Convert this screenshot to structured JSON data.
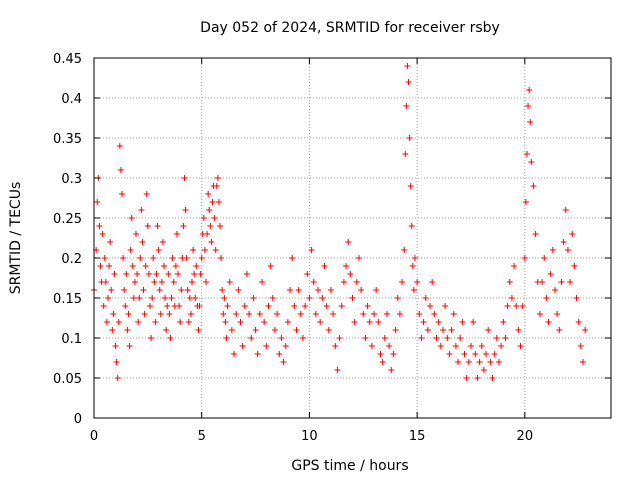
{
  "chart_data": {
    "type": "scatter",
    "title": "Day 052 of 2024, SRMTID for receiver rsby",
    "xlabel": "GPS time / hours",
    "ylabel": "SRMTID / TECUs",
    "xlim": [
      0,
      24
    ],
    "ylim": [
      0,
      0.45
    ],
    "xticks": [
      0,
      5,
      10,
      15,
      20
    ],
    "xtick_labels": [
      "0",
      "5",
      "10",
      "15",
      "20"
    ],
    "yticks": [
      0,
      0.05,
      0.1,
      0.15,
      0.2,
      0.25,
      0.3,
      0.35,
      0.4,
      0.45
    ],
    "ytick_labels": [
      "0",
      "0.05",
      "0.1",
      "0.15",
      "0.2",
      "0.25",
      "0.3",
      "0.35",
      "0.4",
      "0.45"
    ],
    "grid": true,
    "marker": "+",
    "color": "#ff0000",
    "series": [
      {
        "name": "SRMTID",
        "points": [
          [
            0.0,
            0.16
          ],
          [
            0.1,
            0.21
          ],
          [
            0.15,
            0.27
          ],
          [
            0.2,
            0.3
          ],
          [
            0.25,
            0.24
          ],
          [
            0.3,
            0.19
          ],
          [
            0.35,
            0.17
          ],
          [
            0.4,
            0.23
          ],
          [
            0.45,
            0.14
          ],
          [
            0.5,
            0.2
          ],
          [
            0.55,
            0.17
          ],
          [
            0.6,
            0.12
          ],
          [
            0.65,
            0.15
          ],
          [
            0.7,
            0.19
          ],
          [
            0.75,
            0.22
          ],
          [
            0.8,
            0.16
          ],
          [
            0.85,
            0.11
          ],
          [
            0.9,
            0.13
          ],
          [
            0.95,
            0.18
          ],
          [
            1.0,
            0.09
          ],
          [
            1.05,
            0.07
          ],
          [
            1.1,
            0.05
          ],
          [
            1.15,
            0.12
          ],
          [
            1.2,
            0.34
          ],
          [
            1.25,
            0.31
          ],
          [
            1.3,
            0.28
          ],
          [
            1.35,
            0.2
          ],
          [
            1.4,
            0.16
          ],
          [
            1.45,
            0.14
          ],
          [
            1.5,
            0.18
          ],
          [
            1.55,
            0.11
          ],
          [
            1.6,
            0.13
          ],
          [
            1.65,
            0.09
          ],
          [
            1.7,
            0.21
          ],
          [
            1.75,
            0.25
          ],
          [
            1.8,
            0.19
          ],
          [
            1.85,
            0.15
          ],
          [
            1.9,
            0.17
          ],
          [
            1.95,
            0.23
          ],
          [
            2.0,
            0.18
          ],
          [
            2.05,
            0.12
          ],
          [
            2.1,
            0.15
          ],
          [
            2.15,
            0.2
          ],
          [
            2.2,
            0.26
          ],
          [
            2.25,
            0.22
          ],
          [
            2.3,
            0.16
          ],
          [
            2.35,
            0.13
          ],
          [
            2.4,
            0.19
          ],
          [
            2.45,
            0.28
          ],
          [
            2.5,
            0.24
          ],
          [
            2.55,
            0.18
          ],
          [
            2.6,
            0.14
          ],
          [
            2.65,
            0.1
          ],
          [
            2.7,
            0.15
          ],
          [
            2.75,
            0.2
          ],
          [
            2.8,
            0.17
          ],
          [
            2.85,
            0.12
          ],
          [
            2.9,
            0.18
          ],
          [
            2.95,
            0.24
          ],
          [
            3.0,
            0.21
          ],
          [
            3.05,
            0.16
          ],
          [
            3.1,
            0.13
          ],
          [
            3.15,
            0.17
          ],
          [
            3.2,
            0.22
          ],
          [
            3.25,
            0.19
          ],
          [
            3.3,
            0.15
          ],
          [
            3.35,
            0.11
          ],
          [
            3.4,
            0.14
          ],
          [
            3.45,
            0.18
          ],
          [
            3.5,
            0.13
          ],
          [
            3.55,
            0.1
          ],
          [
            3.6,
            0.15
          ],
          [
            3.65,
            0.2
          ],
          [
            3.7,
            0.17
          ],
          [
            3.75,
            0.14
          ],
          [
            3.8,
            0.19
          ],
          [
            3.85,
            0.23
          ],
          [
            3.9,
            0.18
          ],
          [
            3.95,
            0.14
          ],
          [
            4.0,
            0.12
          ],
          [
            4.05,
            0.16
          ],
          [
            4.1,
            0.2
          ],
          [
            4.15,
            0.24
          ],
          [
            4.2,
            0.3
          ],
          [
            4.25,
            0.26
          ],
          [
            4.3,
            0.2
          ],
          [
            4.35,
            0.16
          ],
          [
            4.4,
            0.12
          ],
          [
            4.45,
            0.15
          ],
          [
            4.5,
            0.13
          ],
          [
            4.55,
            0.17
          ],
          [
            4.6,
            0.21
          ],
          [
            4.65,
            0.18
          ],
          [
            4.7,
            0.15
          ],
          [
            4.75,
            0.19
          ],
          [
            4.8,
            0.14
          ],
          [
            4.85,
            0.11
          ],
          [
            4.9,
            0.14
          ],
          [
            4.95,
            0.18
          ],
          [
            5.0,
            0.2
          ],
          [
            5.05,
            0.23
          ],
          [
            5.1,
            0.25
          ],
          [
            5.15,
            0.21
          ],
          [
            5.2,
            0.17
          ],
          [
            5.25,
            0.23
          ],
          [
            5.3,
            0.28
          ],
          [
            5.35,
            0.26
          ],
          [
            5.4,
            0.24
          ],
          [
            5.45,
            0.22
          ],
          [
            5.5,
            0.27
          ],
          [
            5.55,
            0.29
          ],
          [
            5.6,
            0.25
          ],
          [
            5.65,
            0.21
          ],
          [
            5.7,
            0.29
          ],
          [
            5.75,
            0.3
          ],
          [
            5.8,
            0.27
          ],
          [
            5.85,
            0.24
          ],
          [
            5.9,
            0.2
          ],
          [
            5.95,
            0.16
          ],
          [
            6.0,
            0.13
          ],
          [
            6.05,
            0.15
          ],
          [
            6.1,
            0.12
          ],
          [
            6.15,
            0.1
          ],
          [
            6.2,
            0.14
          ],
          [
            6.3,
            0.17
          ],
          [
            6.4,
            0.11
          ],
          [
            6.5,
            0.08
          ],
          [
            6.6,
            0.13
          ],
          [
            6.7,
            0.16
          ],
          [
            6.8,
            0.12
          ],
          [
            6.9,
            0.09
          ],
          [
            7.0,
            0.14
          ],
          [
            7.1,
            0.18
          ],
          [
            7.2,
            0.13
          ],
          [
            7.3,
            0.1
          ],
          [
            7.4,
            0.15
          ],
          [
            7.5,
            0.11
          ],
          [
            7.6,
            0.08
          ],
          [
            7.7,
            0.13
          ],
          [
            7.8,
            0.17
          ],
          [
            7.9,
            0.12
          ],
          [
            8.0,
            0.09
          ],
          [
            8.1,
            0.14
          ],
          [
            8.2,
            0.19
          ],
          [
            8.3,
            0.15
          ],
          [
            8.4,
            0.11
          ],
          [
            8.5,
            0.13
          ],
          [
            8.6,
            0.08
          ],
          [
            8.7,
            0.1
          ],
          [
            8.8,
            0.07
          ],
          [
            8.9,
            0.09
          ],
          [
            9.0,
            0.12
          ],
          [
            9.1,
            0.16
          ],
          [
            9.2,
            0.2
          ],
          [
            9.3,
            0.14
          ],
          [
            9.4,
            0.11
          ],
          [
            9.5,
            0.16
          ],
          [
            9.6,
            0.13
          ],
          [
            9.7,
            0.1
          ],
          [
            9.8,
            0.14
          ],
          [
            9.9,
            0.18
          ],
          [
            10.0,
            0.15
          ],
          [
            10.1,
            0.21
          ],
          [
            10.2,
            0.17
          ],
          [
            10.3,
            0.13
          ],
          [
            10.4,
            0.16
          ],
          [
            10.5,
            0.12
          ],
          [
            10.6,
            0.15
          ],
          [
            10.7,
            0.19
          ],
          [
            10.8,
            0.14
          ],
          [
            10.9,
            0.11
          ],
          [
            11.0,
            0.16
          ],
          [
            11.1,
            0.13
          ],
          [
            11.2,
            0.09
          ],
          [
            11.3,
            0.06
          ],
          [
            11.4,
            0.1
          ],
          [
            11.5,
            0.14
          ],
          [
            11.6,
            0.17
          ],
          [
            11.7,
            0.19
          ],
          [
            11.8,
            0.22
          ],
          [
            11.9,
            0.18
          ],
          [
            12.0,
            0.15
          ],
          [
            12.1,
            0.12
          ],
          [
            12.2,
            0.17
          ],
          [
            12.3,
            0.2
          ],
          [
            12.4,
            0.16
          ],
          [
            12.5,
            0.13
          ],
          [
            12.6,
            0.1
          ],
          [
            12.7,
            0.14
          ],
          [
            12.8,
            0.12
          ],
          [
            12.9,
            0.09
          ],
          [
            13.0,
            0.13
          ],
          [
            13.1,
            0.16
          ],
          [
            13.2,
            0.12
          ],
          [
            13.3,
            0.08
          ],
          [
            13.4,
            0.07
          ],
          [
            13.5,
            0.1
          ],
          [
            13.6,
            0.13
          ],
          [
            13.7,
            0.09
          ],
          [
            13.8,
            0.06
          ],
          [
            13.9,
            0.08
          ],
          [
            14.0,
            0.11
          ],
          [
            14.1,
            0.15
          ],
          [
            14.2,
            0.13
          ],
          [
            14.3,
            0.17
          ],
          [
            14.4,
            0.21
          ],
          [
            14.45,
            0.33
          ],
          [
            14.5,
            0.39
          ],
          [
            14.55,
            0.44
          ],
          [
            14.6,
            0.42
          ],
          [
            14.65,
            0.35
          ],
          [
            14.7,
            0.29
          ],
          [
            14.75,
            0.24
          ],
          [
            14.8,
            0.19
          ],
          [
            14.85,
            0.16
          ],
          [
            14.9,
            0.2
          ],
          [
            15.0,
            0.17
          ],
          [
            15.1,
            0.13
          ],
          [
            15.2,
            0.1
          ],
          [
            15.3,
            0.12
          ],
          [
            15.4,
            0.15
          ],
          [
            15.5,
            0.11
          ],
          [
            15.6,
            0.14
          ],
          [
            15.7,
            0.17
          ],
          [
            15.8,
            0.13
          ],
          [
            15.9,
            0.1
          ],
          [
            16.0,
            0.12
          ],
          [
            16.1,
            0.09
          ],
          [
            16.2,
            0.11
          ],
          [
            16.3,
            0.14
          ],
          [
            16.4,
            0.1
          ],
          [
            16.5,
            0.08
          ],
          [
            16.6,
            0.11
          ],
          [
            16.7,
            0.13
          ],
          [
            16.8,
            0.09
          ],
          [
            16.9,
            0.07
          ],
          [
            17.0,
            0.1
          ],
          [
            17.1,
            0.12
          ],
          [
            17.2,
            0.08
          ],
          [
            17.3,
            0.05
          ],
          [
            17.4,
            0.07
          ],
          [
            17.5,
            0.09
          ],
          [
            17.6,
            0.12
          ],
          [
            17.7,
            0.08
          ],
          [
            17.8,
            0.05
          ],
          [
            17.9,
            0.07
          ],
          [
            18.0,
            0.09
          ],
          [
            18.1,
            0.06
          ],
          [
            18.2,
            0.08
          ],
          [
            18.3,
            0.11
          ],
          [
            18.4,
            0.07
          ],
          [
            18.5,
            0.05
          ],
          [
            18.6,
            0.08
          ],
          [
            18.7,
            0.1
          ],
          [
            18.8,
            0.07
          ],
          [
            18.9,
            0.09
          ],
          [
            19.0,
            0.12
          ],
          [
            19.1,
            0.1
          ],
          [
            19.2,
            0.14
          ],
          [
            19.3,
            0.17
          ],
          [
            19.4,
            0.15
          ],
          [
            19.5,
            0.19
          ],
          [
            19.6,
            0.14
          ],
          [
            19.7,
            0.11
          ],
          [
            19.8,
            0.09
          ],
          [
            19.9,
            0.14
          ],
          [
            20.0,
            0.2
          ],
          [
            20.05,
            0.27
          ],
          [
            20.1,
            0.33
          ],
          [
            20.15,
            0.39
          ],
          [
            20.2,
            0.41
          ],
          [
            20.25,
            0.37
          ],
          [
            20.3,
            0.32
          ],
          [
            20.4,
            0.29
          ],
          [
            20.5,
            0.23
          ],
          [
            20.6,
            0.17
          ],
          [
            20.7,
            0.13
          ],
          [
            20.8,
            0.17
          ],
          [
            20.9,
            0.2
          ],
          [
            21.0,
            0.15
          ],
          [
            21.1,
            0.12
          ],
          [
            21.2,
            0.18
          ],
          [
            21.3,
            0.21
          ],
          [
            21.4,
            0.16
          ],
          [
            21.5,
            0.13
          ],
          [
            21.6,
            0.11
          ],
          [
            21.7,
            0.17
          ],
          [
            21.8,
            0.22
          ],
          [
            21.9,
            0.26
          ],
          [
            22.0,
            0.21
          ],
          [
            22.1,
            0.17
          ],
          [
            22.2,
            0.23
          ],
          [
            22.3,
            0.19
          ],
          [
            22.4,
            0.15
          ],
          [
            22.5,
            0.12
          ],
          [
            22.6,
            0.09
          ],
          [
            22.7,
            0.07
          ],
          [
            22.8,
            0.11
          ]
        ]
      }
    ]
  }
}
